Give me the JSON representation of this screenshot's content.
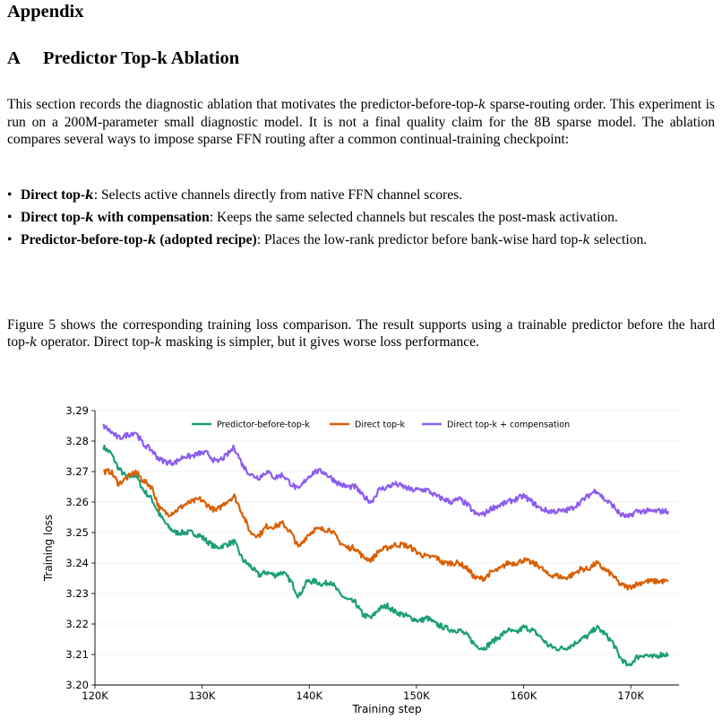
{
  "appendix_title": "Appendix",
  "section": {
    "number": "A",
    "title": "Predictor Top-k Ablation"
  },
  "intro": {
    "prefix": "This section records the diagnostic ablation that motivates the predictor-before-top-",
    "k": "k",
    "suffix": " sparse-routing order. This experiment is run on a 200M-parameter small diagnostic model. It is not a final quality claim for the 8B sparse model. The ablation compares several ways to impose sparse FFN routing after a common continual-training checkpoint:"
  },
  "bullets": [
    {
      "bold_prefix": "Direct top-",
      "k": "k",
      "bold_suffix": "",
      "text": ": Selects active channels directly from native FFN channel scores."
    },
    {
      "bold_prefix": "Direct top-",
      "k": "k",
      "bold_suffix": " with compensation",
      "text": ": Keeps the same selected channels but rescales the post-mask activation."
    },
    {
      "bold_prefix": "Predictor-before-top-",
      "k": "k",
      "bold_suffix": " (adopted recipe)",
      "text": ": Places the low-rank predictor before bank-wise hard top-",
      "k2": "k",
      "text2": " selection."
    }
  ],
  "closing": {
    "t1": "Figure 5 shows the corresponding training loss comparison. The result supports using a trainable predictor before the hard top-",
    "k1": "k",
    "t2": " operator. Direct top-",
    "k2": "k",
    "t3": " masking is simpler, but it gives worse loss performance."
  },
  "chart_data": {
    "type": "line",
    "xlabel": "Training step",
    "ylabel": "Training loss",
    "xlim": [
      120000,
      174500
    ],
    "ylim": [
      3.2,
      3.29
    ],
    "xticks": [
      120000,
      130000,
      140000,
      150000,
      160000,
      170000
    ],
    "xtick_labels": [
      "120K",
      "130K",
      "140K",
      "150K",
      "160K",
      "170K"
    ],
    "yticks": [
      3.2,
      3.21,
      3.22,
      3.23,
      3.24,
      3.25,
      3.26,
      3.27,
      3.28,
      3.29
    ],
    "ytick_labels": [
      "3.20",
      "3.21",
      "3.22",
      "3.23",
      "3.24",
      "3.25",
      "3.26",
      "3.27",
      "3.28",
      "3.29"
    ],
    "grid": "horizontal",
    "legend_position": "top",
    "series": [
      {
        "name": "Predictor-before-top-k",
        "color": "#1b9e77",
        "x": [
          120800,
          121500,
          122200,
          123000,
          123800,
          124500,
          125300,
          126000,
          126800,
          127500,
          128300,
          129000,
          129800,
          130500,
          131300,
          132200,
          133000,
          133800,
          134500,
          135300,
          136000,
          136800,
          137500,
          138300,
          139000,
          139800,
          140500,
          141300,
          142000,
          142800,
          143500,
          144300,
          145000,
          145800,
          146500,
          147300,
          148000,
          148800,
          149500,
          150300,
          151000,
          151800,
          152500,
          153300,
          154000,
          154800,
          155500,
          156300,
          157000,
          157800,
          158500,
          159300,
          160000,
          160800,
          161500,
          162300,
          163000,
          163800,
          164500,
          165300,
          166000,
          166800,
          167500,
          168300,
          169000,
          169800,
          170500,
          171300,
          172000,
          172800,
          173500
        ],
        "y": [
          3.278,
          3.276,
          3.271,
          3.268,
          3.269,
          3.264,
          3.261,
          3.256,
          3.252,
          3.25,
          3.25,
          3.25,
          3.249,
          3.247,
          3.245,
          3.246,
          3.247,
          3.241,
          3.239,
          3.236,
          3.237,
          3.236,
          3.237,
          3.234,
          3.229,
          3.234,
          3.234,
          3.233,
          3.234,
          3.23,
          3.228,
          3.227,
          3.223,
          3.222,
          3.225,
          3.226,
          3.224,
          3.223,
          3.222,
          3.221,
          3.222,
          3.22,
          3.219,
          3.218,
          3.218,
          3.216,
          3.213,
          3.212,
          3.214,
          3.216,
          3.218,
          3.217,
          3.219,
          3.218,
          3.216,
          3.213,
          3.212,
          3.212,
          3.213,
          3.215,
          3.216,
          3.219,
          3.217,
          3.214,
          3.209,
          3.206,
          3.209,
          3.21,
          3.209,
          3.21,
          3.21
        ]
      },
      {
        "name": "Direct top-k",
        "color": "#d95f02",
        "x": [
          120800,
          121500,
          122200,
          123000,
          123800,
          124500,
          125300,
          126000,
          126800,
          127500,
          128300,
          129000,
          129800,
          130500,
          131300,
          132200,
          133000,
          133800,
          134500,
          135300,
          136000,
          136800,
          137500,
          138300,
          139000,
          139800,
          140500,
          141300,
          142000,
          142800,
          143500,
          144300,
          145000,
          145800,
          146500,
          147300,
          148000,
          148800,
          149500,
          150300,
          151000,
          151800,
          152500,
          153300,
          154000,
          154800,
          155500,
          156300,
          157000,
          157800,
          158500,
          159300,
          160000,
          160800,
          161500,
          162300,
          163000,
          163800,
          164500,
          165300,
          166000,
          166800,
          167500,
          168300,
          169000,
          169800,
          170500,
          171300,
          172000,
          172800,
          173500
        ],
        "y": [
          3.27,
          3.27,
          3.266,
          3.268,
          3.27,
          3.267,
          3.265,
          3.258,
          3.256,
          3.257,
          3.259,
          3.26,
          3.261,
          3.259,
          3.257,
          3.26,
          3.262,
          3.256,
          3.25,
          3.249,
          3.252,
          3.252,
          3.253,
          3.25,
          3.245,
          3.249,
          3.251,
          3.251,
          3.251,
          3.247,
          3.245,
          3.245,
          3.242,
          3.241,
          3.244,
          3.245,
          3.246,
          3.246,
          3.245,
          3.243,
          3.242,
          3.242,
          3.24,
          3.24,
          3.24,
          3.238,
          3.235,
          3.235,
          3.237,
          3.238,
          3.24,
          3.24,
          3.241,
          3.24,
          3.239,
          3.236,
          3.236,
          3.235,
          3.236,
          3.238,
          3.238,
          3.24,
          3.238,
          3.236,
          3.233,
          3.232,
          3.233,
          3.234,
          3.234,
          3.234,
          3.234
        ]
      },
      {
        "name": "Direct top-k + compensation",
        "color": "#8c5cf0",
        "x": [
          120800,
          121500,
          122200,
          123000,
          123800,
          124500,
          125300,
          126000,
          126800,
          127500,
          128300,
          129000,
          129800,
          130500,
          131300,
          132200,
          133000,
          133800,
          134500,
          135300,
          136000,
          136800,
          137500,
          138300,
          139000,
          139800,
          140500,
          141300,
          142000,
          142800,
          143500,
          144300,
          145000,
          145800,
          146500,
          147300,
          148000,
          148800,
          149500,
          150300,
          151000,
          151800,
          152500,
          153300,
          154000,
          154800,
          155500,
          156300,
          157000,
          157800,
          158500,
          159300,
          160000,
          160800,
          161500,
          162300,
          163000,
          163800,
          164500,
          165300,
          166000,
          166800,
          167500,
          168300,
          169000,
          169800,
          170500,
          171300,
          172000,
          172800,
          173500
        ],
        "y": [
          3.285,
          3.283,
          3.281,
          3.282,
          3.283,
          3.279,
          3.277,
          3.274,
          3.273,
          3.273,
          3.275,
          3.275,
          3.276,
          3.276,
          3.273,
          3.275,
          3.278,
          3.272,
          3.269,
          3.268,
          3.27,
          3.268,
          3.269,
          3.266,
          3.264,
          3.268,
          3.27,
          3.27,
          3.268,
          3.266,
          3.265,
          3.265,
          3.262,
          3.26,
          3.264,
          3.265,
          3.266,
          3.265,
          3.264,
          3.264,
          3.264,
          3.262,
          3.261,
          3.26,
          3.261,
          3.259,
          3.256,
          3.256,
          3.258,
          3.259,
          3.26,
          3.261,
          3.262,
          3.26,
          3.258,
          3.257,
          3.257,
          3.257,
          3.258,
          3.26,
          3.262,
          3.264,
          3.261,
          3.259,
          3.256,
          3.255,
          3.257,
          3.257,
          3.257,
          3.257,
          3.257
        ]
      }
    ]
  }
}
